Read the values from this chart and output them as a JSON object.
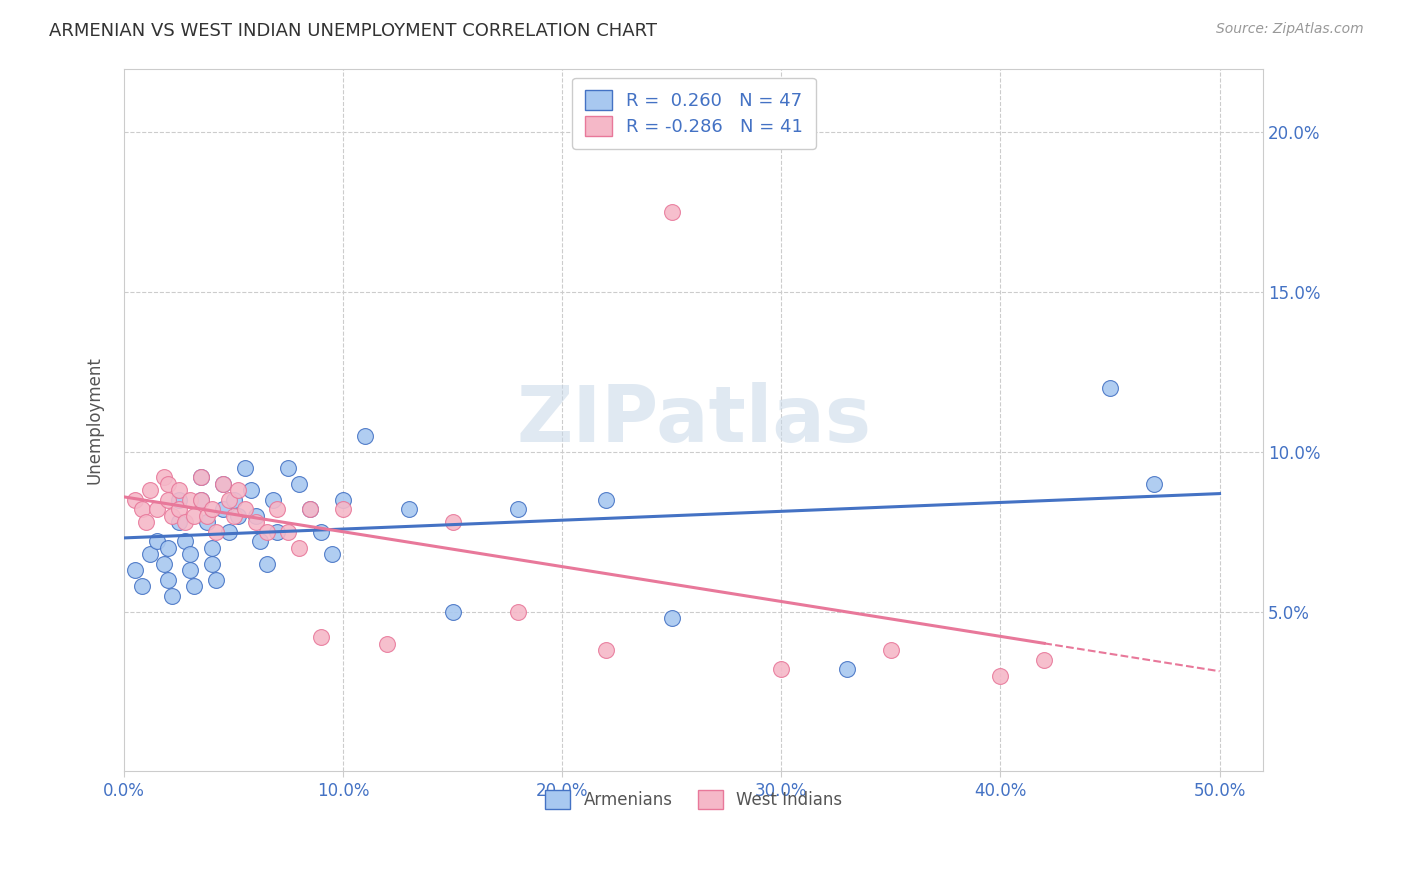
{
  "title": "ARMENIAN VS WEST INDIAN UNEMPLOYMENT CORRELATION CHART",
  "source": "Source: ZipAtlas.com",
  "ylabel_label": "Unemployment",
  "xlim": [
    0.0,
    0.52
  ],
  "ylim": [
    0.0,
    0.22
  ],
  "watermark": "ZIPatlas",
  "legend_r_armenian": "R =  0.260   N = 47",
  "legend_r_west_indian": "R = -0.286   N = 41",
  "armenian_color": "#a8c8f0",
  "west_indian_color": "#f5b8c8",
  "armenian_line_color": "#4472c4",
  "west_indian_line_color": "#e8789a",
  "background_color": "#ffffff",
  "grid_color": "#cccccc",
  "armenians_x": [
    0.005,
    0.008,
    0.012,
    0.015,
    0.018,
    0.02,
    0.02,
    0.022,
    0.025,
    0.025,
    0.028,
    0.03,
    0.03,
    0.032,
    0.035,
    0.035,
    0.038,
    0.04,
    0.04,
    0.042,
    0.045,
    0.045,
    0.048,
    0.05,
    0.052,
    0.055,
    0.058,
    0.06,
    0.062,
    0.065,
    0.068,
    0.07,
    0.075,
    0.08,
    0.085,
    0.09,
    0.095,
    0.1,
    0.11,
    0.13,
    0.15,
    0.18,
    0.22,
    0.25,
    0.33,
    0.45,
    0.47
  ],
  "armenians_y": [
    0.063,
    0.058,
    0.068,
    0.072,
    0.065,
    0.07,
    0.06,
    0.055,
    0.085,
    0.078,
    0.072,
    0.068,
    0.063,
    0.058,
    0.092,
    0.085,
    0.078,
    0.07,
    0.065,
    0.06,
    0.09,
    0.082,
    0.075,
    0.085,
    0.08,
    0.095,
    0.088,
    0.08,
    0.072,
    0.065,
    0.085,
    0.075,
    0.095,
    0.09,
    0.082,
    0.075,
    0.068,
    0.085,
    0.105,
    0.082,
    0.05,
    0.082,
    0.085,
    0.048,
    0.032,
    0.12,
    0.09
  ],
  "west_indians_x": [
    0.005,
    0.008,
    0.01,
    0.012,
    0.015,
    0.018,
    0.02,
    0.02,
    0.022,
    0.025,
    0.025,
    0.028,
    0.03,
    0.032,
    0.035,
    0.035,
    0.038,
    0.04,
    0.042,
    0.045,
    0.048,
    0.05,
    0.052,
    0.055,
    0.06,
    0.065,
    0.07,
    0.075,
    0.08,
    0.085,
    0.09,
    0.1,
    0.12,
    0.15,
    0.18,
    0.22,
    0.25,
    0.3,
    0.35,
    0.4,
    0.42
  ],
  "west_indians_y": [
    0.085,
    0.082,
    0.078,
    0.088,
    0.082,
    0.092,
    0.09,
    0.085,
    0.08,
    0.088,
    0.082,
    0.078,
    0.085,
    0.08,
    0.092,
    0.085,
    0.08,
    0.082,
    0.075,
    0.09,
    0.085,
    0.08,
    0.088,
    0.082,
    0.078,
    0.075,
    0.082,
    0.075,
    0.07,
    0.082,
    0.042,
    0.082,
    0.04,
    0.078,
    0.05,
    0.038,
    0.175,
    0.032,
    0.038,
    0.03,
    0.035
  ]
}
